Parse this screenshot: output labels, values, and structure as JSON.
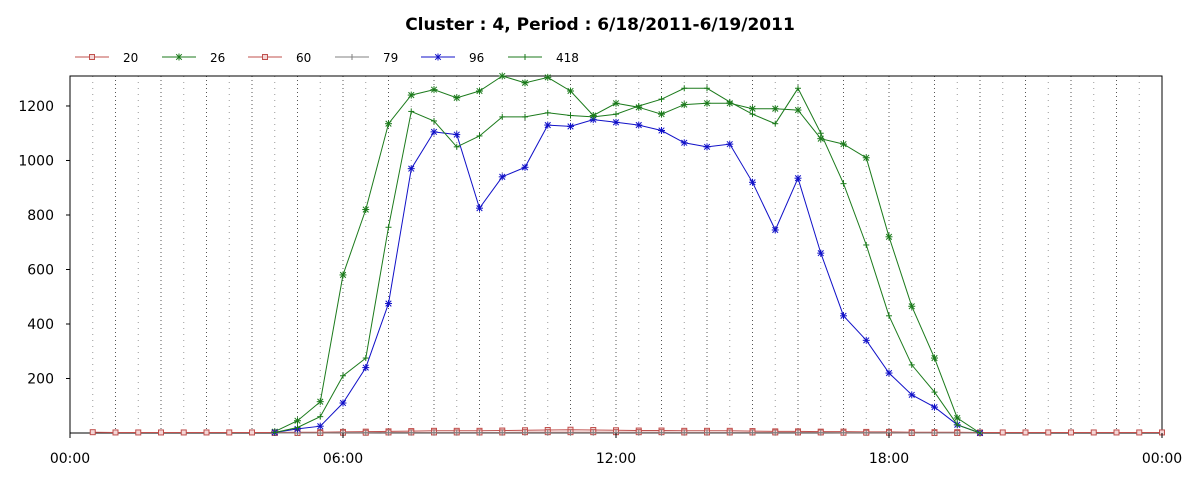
{
  "chart_data": {
    "type": "line",
    "title": "Cluster : 4, Period : 6/18/2011-6/19/2011",
    "xlabel": "",
    "ylabel": "",
    "x_unit": "time of day (hours)",
    "xlim": [
      0,
      24
    ],
    "ylim": [
      0,
      1310
    ],
    "x_ticks": [
      0,
      6,
      12,
      18,
      24
    ],
    "x_tick_labels": [
      "00:00",
      "06:00",
      "12:00",
      "18:00",
      "00:00"
    ],
    "y_ticks": [
      200,
      400,
      600,
      800,
      1000,
      1200
    ],
    "y_tick_labels": [
      "200",
      "400",
      "600",
      "800",
      "1000",
      "1200"
    ],
    "grid": "dotted vertical lines every 30 minutes, denser dotted at each hour; no horizontal grid",
    "legend_position": "top-left, horizontal, above plot",
    "series": [
      {
        "name": "20",
        "color": "#c0504d",
        "marker": "square",
        "x": [
          0.5,
          1,
          1.5,
          2,
          2.5,
          3,
          3.5,
          4,
          4.5,
          5,
          5.5,
          6,
          6.5,
          7,
          7.5,
          8,
          8.5,
          9,
          9.5,
          10,
          10.5,
          11,
          11.5,
          12,
          12.5,
          13,
          13.5,
          14,
          14.5,
          15,
          15.5,
          16,
          16.5,
          17,
          17.5,
          18,
          18.5,
          19,
          19.5,
          20,
          20.5,
          21,
          21.5,
          22,
          22.5,
          23,
          23.5,
          24
        ],
        "y": [
          3,
          2,
          2,
          2,
          2,
          2,
          2,
          2,
          2,
          3,
          3,
          4,
          5,
          6,
          7,
          8,
          8,
          8,
          9,
          10,
          11,
          12,
          11,
          10,
          9,
          9,
          8,
          8,
          8,
          7,
          6,
          6,
          5,
          5,
          4,
          4,
          3,
          3,
          3,
          2,
          2,
          2,
          2,
          2,
          2,
          2,
          2,
          2
        ]
      },
      {
        "name": "26",
        "color": "#1b7a1b",
        "marker": "asterisk",
        "x": [
          4.5,
          5,
          5.5,
          6,
          6.5,
          7,
          7.5,
          8,
          8.5,
          9,
          9.5,
          10,
          10.5,
          11,
          11.5,
          12,
          12.5,
          13,
          13.5,
          14,
          14.5,
          15,
          15.5,
          16,
          16.5,
          17,
          17.5,
          18,
          18.5,
          19,
          19.5,
          20
        ],
        "y": [
          5,
          45,
          115,
          580,
          820,
          1135,
          1240,
          1260,
          1230,
          1255,
          1310,
          1285,
          1305,
          1255,
          1165,
          1210,
          1195,
          1170,
          1205,
          1210,
          1210,
          1190,
          1190,
          1185,
          1080,
          1060,
          1010,
          720,
          465,
          275,
          55,
          0
        ]
      },
      {
        "name": "60",
        "color": "#c0504d",
        "marker": "square",
        "x": [
          4.5,
          5,
          5.5,
          6,
          6.5,
          7,
          7.5,
          8,
          8.5,
          9,
          9.5,
          10,
          10.5,
          11,
          11.5,
          12,
          12.5,
          13,
          13.5,
          14,
          14.5,
          15,
          15.5,
          16,
          16.5,
          17,
          17.5,
          18,
          18.5,
          19,
          19.5,
          20
        ],
        "y": [
          0,
          0,
          0,
          1,
          1,
          2,
          2,
          2,
          2,
          2,
          2,
          3,
          3,
          3,
          3,
          3,
          3,
          3,
          2,
          2,
          2,
          2,
          2,
          2,
          2,
          1,
          1,
          1,
          0,
          0,
          0,
          0
        ]
      },
      {
        "name": "79",
        "color": "#808080",
        "marker": "plus",
        "x": [
          4.5,
          5,
          5.5,
          6,
          6.5,
          7,
          7.5,
          8,
          8.5,
          9,
          9.5,
          10,
          10.5,
          11,
          11.5,
          12,
          12.5,
          13,
          13.5,
          14,
          14.5,
          15,
          15.5,
          16,
          16.5,
          17,
          17.5,
          18,
          18.5,
          19,
          19.5,
          20
        ],
        "y": [
          0,
          0,
          0,
          1,
          1,
          1,
          1,
          1,
          1,
          1,
          1,
          1,
          1,
          1,
          1,
          1,
          1,
          1,
          1,
          1,
          1,
          1,
          1,
          1,
          1,
          1,
          1,
          1,
          0,
          0,
          0,
          0
        ]
      },
      {
        "name": "96",
        "color": "#1010c8",
        "marker": "asterisk",
        "x": [
          4.5,
          5,
          5.5,
          6,
          6.5,
          7,
          7.5,
          8,
          8.5,
          9,
          9.5,
          10,
          10.5,
          11,
          11.5,
          12,
          12.5,
          13,
          13.5,
          14,
          14.5,
          15,
          15.5,
          16,
          16.5,
          17,
          17.5,
          18,
          18.5,
          19,
          19.5,
          20
        ],
        "y": [
          2,
          15,
          25,
          110,
          240,
          475,
          970,
          1105,
          1095,
          825,
          940,
          975,
          1130,
          1125,
          1150,
          1140,
          1130,
          1110,
          1065,
          1050,
          1060,
          920,
          745,
          935,
          660,
          430,
          340,
          220,
          140,
          95,
          30,
          0
        ]
      },
      {
        "name": "418",
        "color": "#1b7a1b",
        "marker": "plus",
        "x": [
          4.5,
          5,
          5.5,
          6,
          6.5,
          7,
          7.5,
          8,
          8.5,
          9,
          9.5,
          10,
          10.5,
          11,
          11.5,
          12,
          12.5,
          13,
          13.5,
          14,
          14.5,
          15,
          15.5,
          16,
          16.5,
          17,
          17.5,
          18,
          18.5,
          19,
          19.5,
          20
        ],
        "y": [
          2,
          20,
          60,
          210,
          275,
          755,
          1180,
          1145,
          1050,
          1090,
          1160,
          1160,
          1175,
          1165,
          1160,
          1170,
          1200,
          1225,
          1265,
          1265,
          1215,
          1170,
          1135,
          1265,
          1100,
          915,
          690,
          430,
          250,
          150,
          30,
          0
        ]
      }
    ]
  }
}
